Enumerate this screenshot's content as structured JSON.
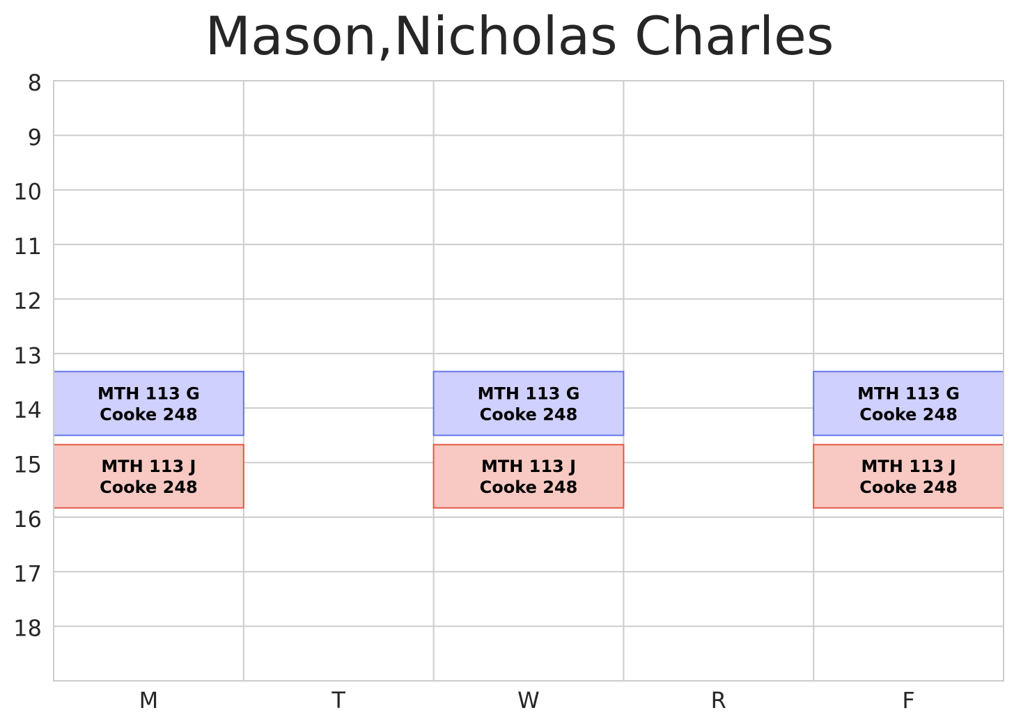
{
  "chart_data": {
    "type": "schedule",
    "title": "Mason,Nicholas Charles",
    "categories": [
      "M",
      "T",
      "W",
      "R",
      "F"
    ],
    "y_ticks": [
      8,
      9,
      10,
      11,
      12,
      13,
      14,
      15,
      16,
      17,
      18
    ],
    "ylim": [
      8,
      19
    ],
    "grid": true,
    "series": [
      {
        "name": "MTH 113 G",
        "room": "Cooke 248",
        "days": [
          "M",
          "W",
          "F"
        ],
        "start": 13.33,
        "end": 14.5,
        "color": "#d0d0ff",
        "edge_color": "#6676e8"
      },
      {
        "name": "MTH 113 J",
        "room": "Cooke 248",
        "days": [
          "M",
          "W",
          "F"
        ],
        "start": 14.67,
        "end": 15.83,
        "color": "#f8c9c2",
        "edge_color": "#e35a45"
      }
    ]
  }
}
